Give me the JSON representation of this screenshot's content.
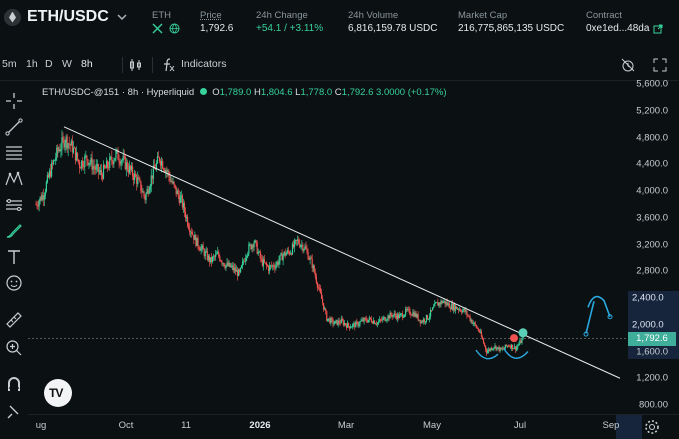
{
  "market": {
    "pair": "ETH/USDC",
    "base_label": "ETH",
    "stats": [
      {
        "label": "Price",
        "value": "1,792.6",
        "underline": true
      },
      {
        "label": "24h Change",
        "value": "+54.1 / +3.11%",
        "tone": "green"
      },
      {
        "label": "24h Volume",
        "value": "6,816,159.78 USDC"
      },
      {
        "label": "Market Cap",
        "value": "216,775,865,135 USDC"
      },
      {
        "label": "Contract",
        "value": "0xe1ed...48da"
      }
    ]
  },
  "toolbar": {
    "intervals": [
      "5m",
      "1h",
      "D",
      "W",
      "8h"
    ],
    "active_interval": "8h",
    "indicators_label": "Indicators"
  },
  "legend": {
    "symbol": "ETH/USDC-@151 · 8h · Hyperliquid",
    "o_label": "O",
    "o_value": "1,789.0",
    "h_label": "H",
    "h_value": "1,804.6",
    "l_label": "L",
    "l_value": "1,778.0",
    "c_label": "C",
    "c_value": "1,792.6",
    "change": "3.0000 (+0.17%)"
  },
  "price_scale": {
    "ticks": [
      "5,600.0",
      "5,200.0",
      "4,800.0",
      "4,400.0",
      "4,000.0",
      "3,600.0",
      "3,200.0",
      "2,800.0",
      "2,400.0",
      "2,000.0",
      "1,600.0",
      "1,200.0",
      "800.00"
    ],
    "current_price": "1,792.6",
    "current_color": "#3fae9a"
  },
  "time_scale": {
    "labels": [
      "ug",
      "Oct",
      "11",
      "2026",
      "Mar",
      "May",
      "Jul",
      "Sep"
    ],
    "bold_label": "2026"
  },
  "icons": {
    "crosshair": "crosshair-icon",
    "trendline": "trendline-icon",
    "fib": "fib-icon",
    "pattern": "pattern-icon",
    "forecast": "forecast-icon",
    "brush": "brush-icon",
    "text": "text-icon",
    "emoji": "emoji-icon",
    "ruler": "ruler-icon",
    "zoom": "zoom-in-icon",
    "magnet": "magnet-icon"
  },
  "colors": {
    "up": "#37d29b",
    "down": "#ef5350",
    "trendline": "#e8ecee",
    "annotation": "#2aa9e0",
    "background": "#0b1012"
  },
  "chart_data": {
    "type": "candlestick",
    "ylim": [
      800,
      5600
    ],
    "points": [
      [
        "ug",
        3800
      ],
      [
        "ug",
        3950
      ],
      [
        "ug",
        4300
      ],
      [
        "ug",
        4600
      ],
      [
        "ug",
        4780
      ],
      [
        "ug",
        4650
      ],
      [
        "ug",
        4400
      ],
      [
        "ug",
        4500
      ],
      [
        "ug",
        4350
      ],
      [
        "ug",
        4250
      ],
      [
        "ug",
        4400
      ],
      [
        "ug",
        4550
      ],
      [
        "ug",
        4450
      ],
      [
        "ug",
        4300
      ],
      [
        "Oct",
        4150
      ],
      [
        "Oct",
        3900
      ],
      [
        "Oct",
        4250
      ],
      [
        "Oct",
        4500
      ],
      [
        "Oct",
        4300
      ],
      [
        "Oct",
        4050
      ],
      [
        "Oct",
        3850
      ],
      [
        "11",
        3500
      ],
      [
        "11",
        3250
      ],
      [
        "11",
        3100
      ],
      [
        "11",
        2950
      ],
      [
        "11",
        3050
      ],
      [
        "11",
        2900
      ],
      [
        "11",
        2850
      ],
      [
        "11",
        2750
      ],
      [
        "11",
        3100
      ],
      [
        "11",
        3250
      ],
      [
        "11",
        2950
      ],
      [
        "11",
        2850
      ],
      [
        "11",
        2900
      ],
      [
        "11",
        3050
      ],
      [
        "2026",
        3100
      ],
      [
        "2026",
        3250
      ],
      [
        "2026",
        3150
      ],
      [
        "2026",
        2900
      ],
      [
        "2026",
        2500
      ],
      [
        "2026",
        2100
      ],
      [
        "2026",
        2020
      ],
      [
        "2026",
        2050
      ],
      [
        "2026",
        1980
      ],
      [
        "Mar",
        2000
      ],
      [
        "Mar",
        2060
      ],
      [
        "Mar",
        2080
      ],
      [
        "Mar",
        2030
      ],
      [
        "Mar",
        2100
      ],
      [
        "Mar",
        2150
      ],
      [
        "Mar",
        2120
      ],
      [
        "Mar",
        2200
      ],
      [
        "Mar",
        2170
      ],
      [
        "Mar",
        2050
      ],
      [
        "May",
        2120
      ],
      [
        "May",
        2300
      ],
      [
        "May",
        2350
      ],
      [
        "May",
        2280
      ],
      [
        "May",
        2250
      ],
      [
        "May",
        2200
      ],
      [
        "May",
        2050
      ],
      [
        "May",
        1900
      ],
      [
        "Jul",
        1600
      ],
      [
        "Jul",
        1680
      ],
      [
        "Jul",
        1620
      ],
      [
        "Jul",
        1700
      ],
      [
        "Jul",
        1650
      ],
      [
        "Jul",
        1792.6
      ]
    ]
  }
}
